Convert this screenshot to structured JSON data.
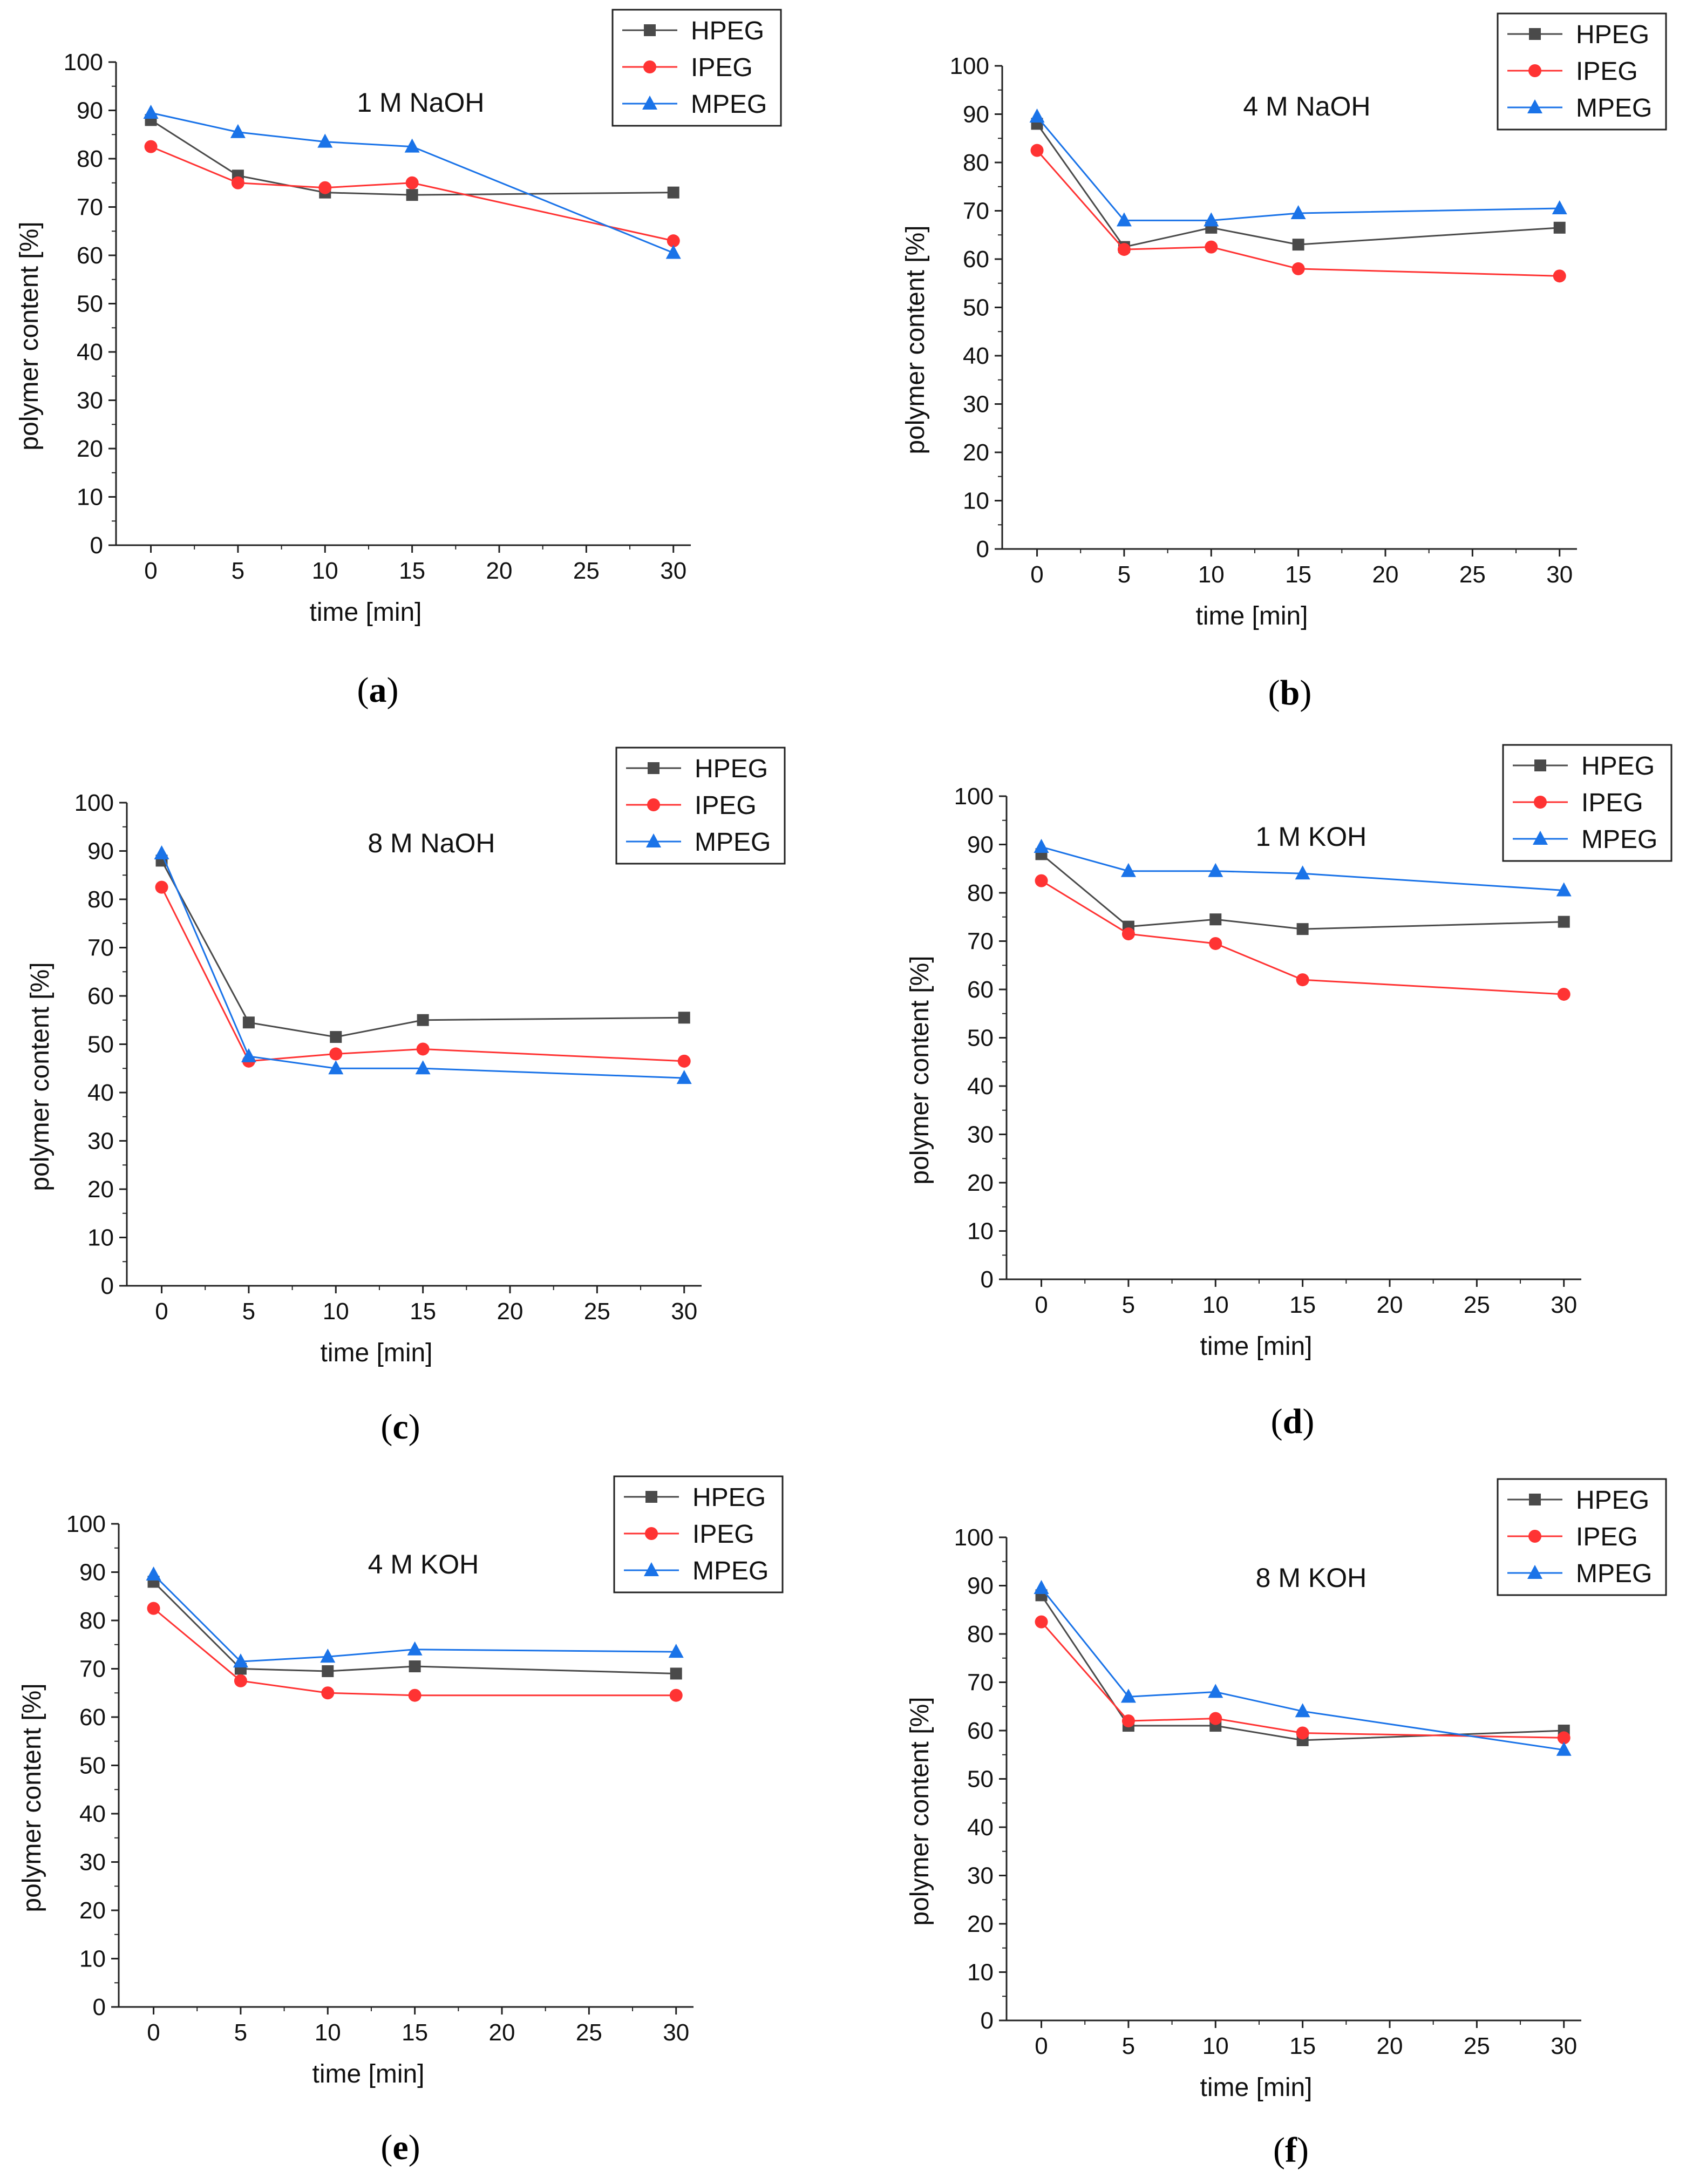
{
  "figure": {
    "series_names": [
      "HPEG",
      "IPEG",
      "MPEG"
    ],
    "series_colors": [
      "#4a4a4a",
      "#ff3333",
      "#1a73e8"
    ],
    "series_markers": [
      "square",
      "circle",
      "triangle"
    ],
    "panel_labels_open": "(",
    "panel_labels_close": ")"
  },
  "chart_data": [
    {
      "type": "line",
      "panel_label": "a",
      "title": "1 M NaOH",
      "xlabel": "time [min]",
      "ylabel": "polymer content [%]",
      "xlim": [
        -2,
        31
      ],
      "ylim": [
        0,
        100
      ],
      "xticks": [
        0,
        5,
        10,
        15,
        20,
        25,
        30
      ],
      "yticks": [
        0,
        10,
        20,
        30,
        40,
        50,
        60,
        70,
        80,
        90,
        100
      ],
      "x": [
        0,
        5,
        10,
        15,
        30
      ],
      "series": [
        {
          "name": "HPEG",
          "values": [
            88,
            76.5,
            73,
            72.5,
            73
          ]
        },
        {
          "name": "IPEG",
          "values": [
            82.5,
            75,
            74,
            75,
            63
          ]
        },
        {
          "name": "MPEG",
          "values": [
            89.5,
            85.5,
            83.5,
            82.5,
            60.5
          ]
        }
      ]
    },
    {
      "type": "line",
      "panel_label": "b",
      "title": "4 M NaOH",
      "xlabel": "time [min]",
      "ylabel": "polymer content [%]",
      "xlim": [
        -2,
        31
      ],
      "ylim": [
        0,
        100
      ],
      "xticks": [
        0,
        5,
        10,
        15,
        20,
        25,
        30
      ],
      "yticks": [
        0,
        10,
        20,
        30,
        40,
        50,
        60,
        70,
        80,
        90,
        100
      ],
      "x": [
        0,
        5,
        10,
        15,
        30
      ],
      "series": [
        {
          "name": "HPEG",
          "values": [
            88,
            62.5,
            66.5,
            63,
            66.5
          ]
        },
        {
          "name": "IPEG",
          "values": [
            82.5,
            62,
            62.5,
            58,
            56.5
          ]
        },
        {
          "name": "MPEG",
          "values": [
            89.5,
            68,
            68,
            69.5,
            70.5
          ]
        }
      ]
    },
    {
      "type": "line",
      "panel_label": "c",
      "title": "8 M NaOH",
      "xlabel": "time [min]",
      "ylabel": "polymer content [%]",
      "xlim": [
        -2,
        31
      ],
      "ylim": [
        0,
        100
      ],
      "xticks": [
        0,
        5,
        10,
        15,
        20,
        25,
        30
      ],
      "yticks": [
        0,
        10,
        20,
        30,
        40,
        50,
        60,
        70,
        80,
        90,
        100
      ],
      "x": [
        0,
        5,
        10,
        15,
        30
      ],
      "series": [
        {
          "name": "HPEG",
          "values": [
            88,
            54.5,
            51.5,
            55,
            55.5
          ]
        },
        {
          "name": "IPEG",
          "values": [
            82.5,
            46.5,
            48,
            49,
            46.5
          ]
        },
        {
          "name": "MPEG",
          "values": [
            89.5,
            47.5,
            45,
            45,
            43
          ]
        }
      ]
    },
    {
      "type": "line",
      "panel_label": "d",
      "title": "1 M KOH",
      "xlabel": "time [min]",
      "ylabel": "polymer content [%]",
      "xlim": [
        -2,
        31
      ],
      "ylim": [
        0,
        100
      ],
      "xticks": [
        0,
        5,
        10,
        15,
        20,
        25,
        30
      ],
      "yticks": [
        0,
        10,
        20,
        30,
        40,
        50,
        60,
        70,
        80,
        90,
        100
      ],
      "x": [
        0,
        5,
        10,
        15,
        30
      ],
      "series": [
        {
          "name": "HPEG",
          "values": [
            88,
            73,
            74.5,
            72.5,
            74
          ]
        },
        {
          "name": "IPEG",
          "values": [
            82.5,
            71.5,
            69.5,
            62,
            59
          ]
        },
        {
          "name": "MPEG",
          "values": [
            89.5,
            84.5,
            84.5,
            84,
            80.5
          ]
        }
      ]
    },
    {
      "type": "line",
      "panel_label": "e",
      "title": "4 M KOH",
      "xlabel": "time [min]",
      "ylabel": "polymer content [%]",
      "xlim": [
        -2,
        31
      ],
      "ylim": [
        0,
        100
      ],
      "xticks": [
        0,
        5,
        10,
        15,
        20,
        25,
        30
      ],
      "yticks": [
        0,
        10,
        20,
        30,
        40,
        50,
        60,
        70,
        80,
        90,
        100
      ],
      "x": [
        0,
        5,
        10,
        15,
        30
      ],
      "series": [
        {
          "name": "HPEG",
          "values": [
            88,
            70,
            69.5,
            70.5,
            69
          ]
        },
        {
          "name": "IPEG",
          "values": [
            82.5,
            67.5,
            65,
            64.5,
            64.5
          ]
        },
        {
          "name": "MPEG",
          "values": [
            89.5,
            71.5,
            72.5,
            74,
            73.5
          ]
        }
      ]
    },
    {
      "type": "line",
      "panel_label": "f",
      "title": "8 M KOH",
      "xlabel": "time [min]",
      "ylabel": "polymer content [%]",
      "xlim": [
        -2,
        31
      ],
      "ylim": [
        0,
        100
      ],
      "xticks": [
        0,
        5,
        10,
        15,
        20,
        25,
        30
      ],
      "yticks": [
        0,
        10,
        20,
        30,
        40,
        50,
        60,
        70,
        80,
        90,
        100
      ],
      "x": [
        0,
        5,
        10,
        15,
        30
      ],
      "series": [
        {
          "name": "HPEG",
          "values": [
            88,
            61,
            61,
            58,
            60
          ]
        },
        {
          "name": "IPEG",
          "values": [
            82.5,
            62,
            62.5,
            59.5,
            58.5
          ]
        },
        {
          "name": "MPEG",
          "values": [
            89.5,
            67,
            68,
            64,
            56
          ]
        }
      ]
    }
  ]
}
